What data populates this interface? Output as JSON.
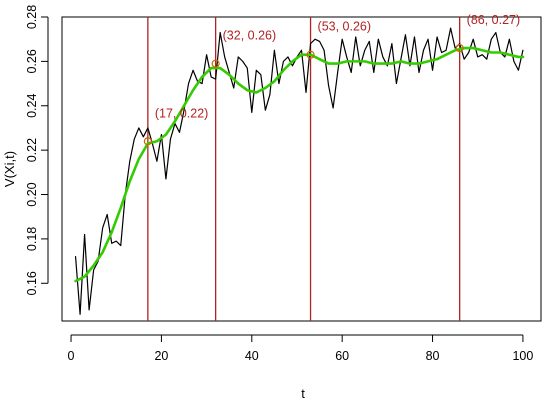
{
  "chart_data": {
    "type": "line",
    "title": "",
    "xlabel": "t",
    "ylabel": "V(Xi,t)",
    "xlim": [
      -2,
      104
    ],
    "ylim": [
      0.143,
      0.28
    ],
    "x_ticks": [
      0,
      20,
      40,
      60,
      80,
      100
    ],
    "y_ticks": [
      0.16,
      0.18,
      0.2,
      0.22,
      0.24,
      0.26,
      0.28
    ],
    "x_tick_labels": [
      "0",
      "20",
      "40",
      "60",
      "80",
      "100"
    ],
    "y_tick_labels": [
      "0.16",
      "0.18",
      "0.20",
      "0.22",
      "0.24",
      "0.26",
      "0.28"
    ],
    "grid": false,
    "colors": {
      "raw": "#000000",
      "smooth": "#33cc00",
      "vline": "#b22222",
      "annotation": "#b22222",
      "marker": "#cc6600"
    },
    "series": [
      {
        "style": "raw",
        "x": [
          1,
          2,
          3,
          4,
          5,
          6,
          7,
          8,
          9,
          10,
          11,
          12,
          13,
          14,
          15,
          16,
          17,
          18,
          19,
          20,
          21,
          22,
          23,
          24,
          25,
          26,
          27,
          28,
          29,
          30,
          31,
          32,
          33,
          34,
          35,
          36,
          37,
          38,
          39,
          40,
          41,
          42,
          43,
          44,
          45,
          46,
          47,
          48,
          49,
          50,
          51,
          52,
          53,
          54,
          55,
          56,
          57,
          58,
          59,
          60,
          61,
          62,
          63,
          64,
          65,
          66,
          67,
          68,
          69,
          70,
          71,
          72,
          73,
          74,
          75,
          76,
          77,
          78,
          79,
          80,
          81,
          82,
          83,
          84,
          85,
          86,
          87,
          88,
          89,
          90,
          91,
          92,
          93,
          94,
          95,
          96,
          97,
          98,
          99,
          100
        ],
        "y": [
          0.172,
          0.146,
          0.182,
          0.148,
          0.166,
          0.17,
          0.185,
          0.191,
          0.178,
          0.179,
          0.177,
          0.2,
          0.215,
          0.225,
          0.23,
          0.226,
          0.23,
          0.223,
          0.215,
          0.227,
          0.207,
          0.225,
          0.232,
          0.228,
          0.238,
          0.25,
          0.256,
          0.251,
          0.25,
          0.263,
          0.253,
          0.252,
          0.273,
          0.262,
          0.255,
          0.248,
          0.262,
          0.26,
          0.257,
          0.237,
          0.256,
          0.254,
          0.238,
          0.245,
          0.265,
          0.25,
          0.26,
          0.262,
          0.258,
          0.262,
          0.265,
          0.246,
          0.268,
          0.27,
          0.269,
          0.265,
          0.249,
          0.239,
          0.255,
          0.27,
          0.262,
          0.255,
          0.271,
          0.258,
          0.265,
          0.269,
          0.255,
          0.27,
          0.262,
          0.258,
          0.268,
          0.25,
          0.261,
          0.272,
          0.258,
          0.271,
          0.255,
          0.265,
          0.27,
          0.256,
          0.271,
          0.264,
          0.265,
          0.275,
          0.266,
          0.268,
          0.261,
          0.264,
          0.27,
          0.262,
          0.263,
          0.261,
          0.27,
          0.273,
          0.264,
          0.262,
          0.27,
          0.26,
          0.256,
          0.265
        ]
      },
      {
        "style": "smooth",
        "x": [
          1,
          3,
          5,
          7,
          9,
          11,
          13,
          15,
          17,
          19,
          21,
          23,
          25,
          27,
          29,
          31,
          33,
          35,
          37,
          39,
          41,
          43,
          45,
          47,
          49,
          51,
          53,
          55,
          57,
          59,
          61,
          63,
          65,
          67,
          69,
          71,
          73,
          75,
          77,
          79,
          81,
          83,
          85,
          87,
          89,
          91,
          93,
          95,
          97,
          99,
          100
        ],
        "y": [
          0.161,
          0.163,
          0.168,
          0.174,
          0.183,
          0.194,
          0.206,
          0.216,
          0.223,
          0.224,
          0.227,
          0.233,
          0.24,
          0.247,
          0.253,
          0.257,
          0.257,
          0.254,
          0.25,
          0.247,
          0.246,
          0.248,
          0.251,
          0.256,
          0.26,
          0.263,
          0.263,
          0.261,
          0.259,
          0.259,
          0.26,
          0.26,
          0.26,
          0.259,
          0.259,
          0.259,
          0.26,
          0.259,
          0.259,
          0.26,
          0.261,
          0.263,
          0.265,
          0.266,
          0.266,
          0.265,
          0.264,
          0.264,
          0.263,
          0.262,
          0.262
        ]
      }
    ],
    "vlines": [
      17,
      32,
      53,
      86
    ],
    "annotations": [
      {
        "x": 17,
        "y": 0.224,
        "label": "(17, 0.22)"
      },
      {
        "x": 32,
        "y": 0.259,
        "label": "(32, 0.26)"
      },
      {
        "x": 53,
        "y": 0.263,
        "label": "(53, 0.26)"
      },
      {
        "x": 86,
        "y": 0.266,
        "label": "(86, 0.27)"
      }
    ]
  }
}
